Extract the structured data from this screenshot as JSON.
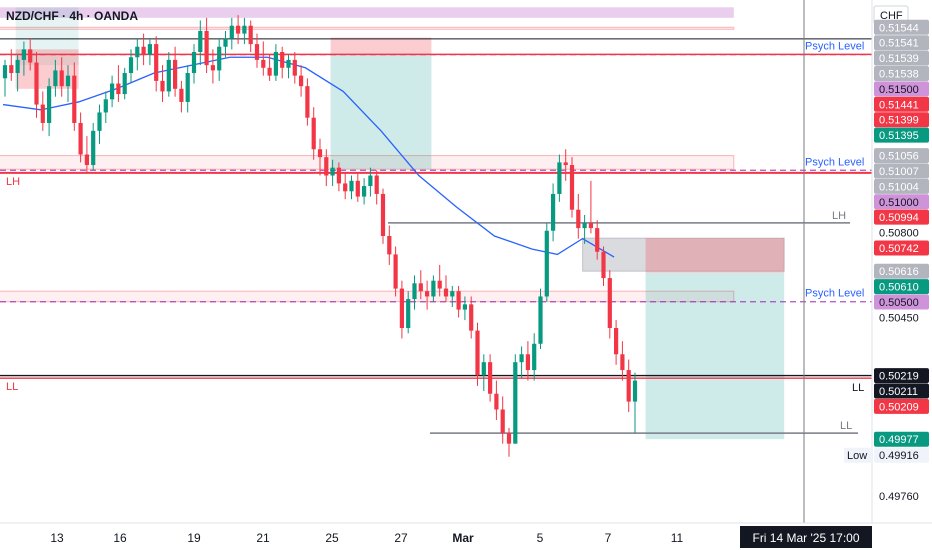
{
  "header": {
    "symbol_label": "NZD/CHF · 4h · OANDA",
    "currency": "CHF"
  },
  "annotations": {
    "lh_left": "LH",
    "ll_left": "LL",
    "lh_right": "LH",
    "ll_right": "LL",
    "ll_right_2": "LL",
    "psych_levels": [
      {
        "label": "Psych Level",
        "price": 0.5144
      },
      {
        "label": "Psych Level",
        "price": 0.51
      },
      {
        "label": "Psych Level",
        "price": 0.505
      }
    ],
    "cursor_label": "Fri 14 Mar '25   17:00"
  },
  "price_labels": [
    {
      "text": "0.51544",
      "bg": "#b2b5be",
      "fg": "#ffffff",
      "price": 0.51544
    },
    {
      "text": "0.51541",
      "bg": "#b2b5be",
      "fg": "#ffffff",
      "price": 0.51541
    },
    {
      "text": "0.51539",
      "bg": "#b2b5be",
      "fg": "#ffffff",
      "price": 0.51539
    },
    {
      "text": "0.51538",
      "bg": "#b2b5be",
      "fg": "#ffffff",
      "price": 0.51538
    },
    {
      "text": "0.51500",
      "bg": "#ce93d8",
      "fg": "#131722",
      "price": 0.515
    },
    {
      "text": "0.51441",
      "bg": "#f23645",
      "fg": "#ffffff",
      "price": 0.51441
    },
    {
      "text": "0.51399",
      "bg": "#f23645",
      "fg": "#ffffff",
      "price": 0.51399
    },
    {
      "text": "0.51395",
      "bg": "#089981",
      "fg": "#ffffff",
      "price": 0.51395
    },
    {
      "text": "0.51056",
      "bg": "#b2b5be",
      "fg": "#ffffff",
      "price": 0.51056
    },
    {
      "text": "0.51007",
      "bg": "#b2b5be",
      "fg": "#ffffff",
      "price": 0.51007
    },
    {
      "text": "0.51004",
      "bg": "#b2b5be",
      "fg": "#ffffff",
      "price": 0.51004
    },
    {
      "text": "0.51000",
      "bg": "#ce93d8",
      "fg": "#131722",
      "price": 0.51
    },
    {
      "text": "0.50994",
      "bg": "#f23645",
      "fg": "#ffffff",
      "price": 0.50994
    },
    {
      "text": "0.50800",
      "bg": "none",
      "fg": "#131722",
      "price": 0.508
    },
    {
      "text": "0.50742",
      "bg": "#f23645",
      "fg": "#ffffff",
      "price": 0.50742
    },
    {
      "text": "0.50616",
      "bg": "#b2b5be",
      "fg": "#ffffff",
      "price": 0.50616
    },
    {
      "text": "0.50610",
      "bg": "#089981",
      "fg": "#ffffff",
      "price": 0.5061
    },
    {
      "text": "0.50500",
      "bg": "#ce93d8",
      "fg": "#131722",
      "price": 0.505
    },
    {
      "text": "0.50450",
      "bg": "none",
      "fg": "#131722",
      "price": 0.5045
    },
    {
      "text": "0.50219",
      "bg": "#131722",
      "fg": "#ffffff",
      "price": 0.50219
    },
    {
      "text": "0.50211",
      "bg": "#131722",
      "fg": "#ffffff",
      "price": 0.50211
    },
    {
      "text": "0.50209",
      "bg": "#f23645",
      "fg": "#ffffff",
      "price": 0.50209
    },
    {
      "text": "0.49977",
      "bg": "#089981",
      "fg": "#ffffff",
      "price": 0.49977
    },
    {
      "text": "0.49916",
      "bg": "#f0f3fa",
      "fg": "#131722",
      "price": 0.49916,
      "prefix": "Low"
    },
    {
      "text": "0.49760",
      "bg": "none",
      "fg": "#131722",
      "price": 0.4976
    }
  ],
  "x_axis_ticks": [
    {
      "label": "13",
      "bold": false
    },
    {
      "label": "16",
      "bold": false
    },
    {
      "label": "19",
      "bold": false
    },
    {
      "label": "21",
      "bold": false
    },
    {
      "label": "25",
      "bold": false
    },
    {
      "label": "27",
      "bold": false
    },
    {
      "label": "Mar",
      "bold": true
    },
    {
      "label": "5",
      "bold": false
    },
    {
      "label": "7",
      "bold": false
    },
    {
      "label": "11",
      "bold": false
    }
  ],
  "colors": {
    "up": "#089981",
    "down": "#f23645",
    "ma": "#2962ff",
    "psych": "#9c27b0",
    "pink_zone": "#f23645",
    "purple_zone": "#ce93d8",
    "teal_zone": "#26a69a"
  },
  "chart_data": {
    "type": "candlestick",
    "symbol": "NZD/CHF",
    "timeframe": "4h",
    "source": "OANDA",
    "levels": {
      "lh_upper": 0.5144,
      "lh_red": 0.5099,
      "lh_gray": 0.508,
      "ll_black": 0.5021,
      "ll_gray": 0.5,
      "low": 0.49916
    },
    "candles": [
      {
        "o": 0.5135,
        "h": 0.5142,
        "l": 0.5128,
        "c": 0.514
      },
      {
        "o": 0.514,
        "h": 0.5146,
        "l": 0.5134,
        "c": 0.5137
      },
      {
        "o": 0.5137,
        "h": 0.5144,
        "l": 0.513,
        "c": 0.5142
      },
      {
        "o": 0.5142,
        "h": 0.5149,
        "l": 0.5136,
        "c": 0.5146
      },
      {
        "o": 0.5146,
        "h": 0.515,
        "l": 0.5138,
        "c": 0.5141
      },
      {
        "o": 0.5141,
        "h": 0.5145,
        "l": 0.512,
        "c": 0.5125
      },
      {
        "o": 0.5125,
        "h": 0.513,
        "l": 0.5115,
        "c": 0.5118
      },
      {
        "o": 0.5118,
        "h": 0.5135,
        "l": 0.5113,
        "c": 0.5132
      },
      {
        "o": 0.5132,
        "h": 0.5142,
        "l": 0.5128,
        "c": 0.5138
      },
      {
        "o": 0.5138,
        "h": 0.5143,
        "l": 0.5128,
        "c": 0.5132
      },
      {
        "o": 0.5132,
        "h": 0.514,
        "l": 0.5126,
        "c": 0.5136
      },
      {
        "o": 0.5136,
        "h": 0.5141,
        "l": 0.5115,
        "c": 0.5118
      },
      {
        "o": 0.5118,
        "h": 0.5122,
        "l": 0.5103,
        "c": 0.5106
      },
      {
        "o": 0.5106,
        "h": 0.5113,
        "l": 0.5099,
        "c": 0.5102
      },
      {
        "o": 0.5102,
        "h": 0.5118,
        "l": 0.51,
        "c": 0.5115
      },
      {
        "o": 0.5115,
        "h": 0.5125,
        "l": 0.511,
        "c": 0.5122
      },
      {
        "o": 0.5122,
        "h": 0.513,
        "l": 0.5118,
        "c": 0.5127
      },
      {
        "o": 0.5127,
        "h": 0.5136,
        "l": 0.5124,
        "c": 0.5133
      },
      {
        "o": 0.5133,
        "h": 0.514,
        "l": 0.5126,
        "c": 0.5129
      },
      {
        "o": 0.5129,
        "h": 0.5139,
        "l": 0.5127,
        "c": 0.5137
      },
      {
        "o": 0.5137,
        "h": 0.5146,
        "l": 0.5133,
        "c": 0.5143
      },
      {
        "o": 0.5143,
        "h": 0.515,
        "l": 0.5138,
        "c": 0.5147
      },
      {
        "o": 0.5147,
        "h": 0.5152,
        "l": 0.514,
        "c": 0.5144
      },
      {
        "o": 0.5144,
        "h": 0.515,
        "l": 0.514,
        "c": 0.5148
      },
      {
        "o": 0.5148,
        "h": 0.5151,
        "l": 0.513,
        "c": 0.5134
      },
      {
        "o": 0.5134,
        "h": 0.514,
        "l": 0.5126,
        "c": 0.513
      },
      {
        "o": 0.513,
        "h": 0.5145,
        "l": 0.5128,
        "c": 0.5142
      },
      {
        "o": 0.5142,
        "h": 0.5147,
        "l": 0.5128,
        "c": 0.5131
      },
      {
        "o": 0.5131,
        "h": 0.5134,
        "l": 0.5122,
        "c": 0.5126
      },
      {
        "o": 0.5126,
        "h": 0.514,
        "l": 0.5122,
        "c": 0.5137
      },
      {
        "o": 0.5137,
        "h": 0.5148,
        "l": 0.5133,
        "c": 0.5145
      },
      {
        "o": 0.5145,
        "h": 0.5157,
        "l": 0.514,
        "c": 0.5153
      },
      {
        "o": 0.5153,
        "h": 0.5158,
        "l": 0.5137,
        "c": 0.514
      },
      {
        "o": 0.514,
        "h": 0.5146,
        "l": 0.5133,
        "c": 0.5138
      },
      {
        "o": 0.5138,
        "h": 0.515,
        "l": 0.5134,
        "c": 0.5147
      },
      {
        "o": 0.5147,
        "h": 0.5153,
        "l": 0.5143,
        "c": 0.515
      },
      {
        "o": 0.515,
        "h": 0.5158,
        "l": 0.5146,
        "c": 0.5155
      },
      {
        "o": 0.5155,
        "h": 0.5159,
        "l": 0.5148,
        "c": 0.5152
      },
      {
        "o": 0.5152,
        "h": 0.5158,
        "l": 0.5148,
        "c": 0.5155
      },
      {
        "o": 0.5155,
        "h": 0.5157,
        "l": 0.5145,
        "c": 0.5148
      },
      {
        "o": 0.5148,
        "h": 0.5152,
        "l": 0.5139,
        "c": 0.5142
      },
      {
        "o": 0.5142,
        "h": 0.5149,
        "l": 0.5136,
        "c": 0.5139
      },
      {
        "o": 0.5139,
        "h": 0.5144,
        "l": 0.5134,
        "c": 0.5136
      },
      {
        "o": 0.5136,
        "h": 0.5148,
        "l": 0.5134,
        "c": 0.5145
      },
      {
        "o": 0.5145,
        "h": 0.5147,
        "l": 0.5135,
        "c": 0.5139
      },
      {
        "o": 0.5139,
        "h": 0.5144,
        "l": 0.5135,
        "c": 0.5142
      },
      {
        "o": 0.5142,
        "h": 0.5145,
        "l": 0.5133,
        "c": 0.5136
      },
      {
        "o": 0.5136,
        "h": 0.514,
        "l": 0.5128,
        "c": 0.5132
      },
      {
        "o": 0.5132,
        "h": 0.5135,
        "l": 0.5117,
        "c": 0.512
      },
      {
        "o": 0.512,
        "h": 0.5124,
        "l": 0.5104,
        "c": 0.5108
      },
      {
        "o": 0.5108,
        "h": 0.5112,
        "l": 0.5098,
        "c": 0.5105
      },
      {
        "o": 0.5105,
        "h": 0.5108,
        "l": 0.5094,
        "c": 0.5098
      },
      {
        "o": 0.5098,
        "h": 0.5104,
        "l": 0.5094,
        "c": 0.5101
      },
      {
        "o": 0.5101,
        "h": 0.5103,
        "l": 0.5092,
        "c": 0.5095
      },
      {
        "o": 0.5095,
        "h": 0.5099,
        "l": 0.5089,
        "c": 0.5092
      },
      {
        "o": 0.5092,
        "h": 0.5098,
        "l": 0.5089,
        "c": 0.5096
      },
      {
        "o": 0.5096,
        "h": 0.5099,
        "l": 0.5088,
        "c": 0.509
      },
      {
        "o": 0.509,
        "h": 0.5097,
        "l": 0.5087,
        "c": 0.5094
      },
      {
        "o": 0.5094,
        "h": 0.5101,
        "l": 0.509,
        "c": 0.5098
      },
      {
        "o": 0.5098,
        "h": 0.51,
        "l": 0.5087,
        "c": 0.5091
      },
      {
        "o": 0.5091,
        "h": 0.5093,
        "l": 0.5072,
        "c": 0.5075
      },
      {
        "o": 0.5075,
        "h": 0.5079,
        "l": 0.5064,
        "c": 0.5068
      },
      {
        "o": 0.5068,
        "h": 0.5071,
        "l": 0.5052,
        "c": 0.5055
      },
      {
        "o": 0.5055,
        "h": 0.5058,
        "l": 0.5036,
        "c": 0.504
      },
      {
        "o": 0.504,
        "h": 0.5054,
        "l": 0.5038,
        "c": 0.5051
      },
      {
        "o": 0.5051,
        "h": 0.506,
        "l": 0.5047,
        "c": 0.5057
      },
      {
        "o": 0.5057,
        "h": 0.5062,
        "l": 0.5051,
        "c": 0.5054
      },
      {
        "o": 0.5054,
        "h": 0.5058,
        "l": 0.5047,
        "c": 0.5052
      },
      {
        "o": 0.5052,
        "h": 0.506,
        "l": 0.505,
        "c": 0.5058
      },
      {
        "o": 0.5058,
        "h": 0.5064,
        "l": 0.5052,
        "c": 0.5055
      },
      {
        "o": 0.5055,
        "h": 0.506,
        "l": 0.505,
        "c": 0.5052
      },
      {
        "o": 0.5052,
        "h": 0.5056,
        "l": 0.5048,
        "c": 0.5054
      },
      {
        "o": 0.5054,
        "h": 0.5056,
        "l": 0.5044,
        "c": 0.5047
      },
      {
        "o": 0.5047,
        "h": 0.5052,
        "l": 0.5043,
        "c": 0.5049
      },
      {
        "o": 0.5049,
        "h": 0.5052,
        "l": 0.5036,
        "c": 0.5039
      },
      {
        "o": 0.5039,
        "h": 0.5042,
        "l": 0.5018,
        "c": 0.5022
      },
      {
        "o": 0.5022,
        "h": 0.503,
        "l": 0.5016,
        "c": 0.5027
      },
      {
        "o": 0.5027,
        "h": 0.503,
        "l": 0.5012,
        "c": 0.5015
      },
      {
        "o": 0.5015,
        "h": 0.502,
        "l": 0.5005,
        "c": 0.5009
      },
      {
        "o": 0.5009,
        "h": 0.5014,
        "l": 0.4996,
        "c": 0.5
      },
      {
        "o": 0.5,
        "h": 0.5002,
        "l": 0.4991,
        "c": 0.4996
      },
      {
        "o": 0.4996,
        "h": 0.503,
        "l": 0.4996,
        "c": 0.5027
      },
      {
        "o": 0.5027,
        "h": 0.5033,
        "l": 0.5021,
        "c": 0.503
      },
      {
        "o": 0.503,
        "h": 0.5035,
        "l": 0.502,
        "c": 0.5024
      },
      {
        "o": 0.5024,
        "h": 0.5038,
        "l": 0.502,
        "c": 0.5034
      },
      {
        "o": 0.5034,
        "h": 0.5055,
        "l": 0.5032,
        "c": 0.5052
      },
      {
        "o": 0.5052,
        "h": 0.508,
        "l": 0.505,
        "c": 0.5077
      },
      {
        "o": 0.5077,
        "h": 0.5095,
        "l": 0.5073,
        "c": 0.5091
      },
      {
        "o": 0.5091,
        "h": 0.5106,
        "l": 0.5088,
        "c": 0.5103
      },
      {
        "o": 0.5103,
        "h": 0.5108,
        "l": 0.5096,
        "c": 0.5102
      },
      {
        "o": 0.5102,
        "h": 0.5105,
        "l": 0.5082,
        "c": 0.5085
      },
      {
        "o": 0.5085,
        "h": 0.5091,
        "l": 0.5074,
        "c": 0.5078
      },
      {
        "o": 0.5078,
        "h": 0.5083,
        "l": 0.5072,
        "c": 0.508
      },
      {
        "o": 0.508,
        "h": 0.5096,
        "l": 0.5076,
        "c": 0.5078
      },
      {
        "o": 0.5078,
        "h": 0.5081,
        "l": 0.5066,
        "c": 0.5069
      },
      {
        "o": 0.5069,
        "h": 0.5071,
        "l": 0.5056,
        "c": 0.5059
      },
      {
        "o": 0.5059,
        "h": 0.5062,
        "l": 0.5036,
        "c": 0.504
      },
      {
        "o": 0.504,
        "h": 0.5043,
        "l": 0.5026,
        "c": 0.503
      },
      {
        "o": 0.503,
        "h": 0.5035,
        "l": 0.502,
        "c": 0.5024
      },
      {
        "o": 0.5024,
        "h": 0.5028,
        "l": 0.5008,
        "c": 0.5012
      },
      {
        "o": 0.5012,
        "h": 0.5023,
        "l": 0.5,
        "c": 0.502
      }
    ],
    "ma": [
      [
        0,
        0.5125
      ],
      [
        6,
        0.5123
      ],
      [
        12,
        0.5126
      ],
      [
        18,
        0.5131
      ],
      [
        24,
        0.5137
      ],
      [
        30,
        0.514
      ],
      [
        36,
        0.5143
      ],
      [
        42,
        0.5143
      ],
      [
        48,
        0.5139
      ],
      [
        54,
        0.513
      ],
      [
        60,
        0.5115
      ],
      [
        66,
        0.5098
      ],
      [
        72,
        0.5086
      ],
      [
        78,
        0.5075
      ],
      [
        84,
        0.507
      ],
      [
        88,
        0.5068
      ],
      [
        92,
        0.5074
      ],
      [
        97,
        0.5067
      ]
    ],
    "zones": [
      {
        "x0": -2,
        "x1": 116,
        "y0": 0.5158,
        "y1": 0.5162,
        "kind": "purple"
      },
      {
        "x0": -2,
        "x1": 116,
        "y0": 0.51538,
        "y1": 0.51544,
        "kind": "pink"
      },
      {
        "x0": -2,
        "x1": 116,
        "y0": 0.51004,
        "y1": 0.51056,
        "kind": "pink"
      },
      {
        "x0": -2,
        "x1": 116,
        "y0": 0.505,
        "y1": 0.5054,
        "kind": "pink"
      },
      {
        "x0": 2,
        "x1": 12,
        "y0": 0.514,
        "y1": 0.5162,
        "kind": "tealLight"
      },
      {
        "x0": 2,
        "x1": 12,
        "y0": 0.5131,
        "y1": 0.5146,
        "kind": "pinkStrong"
      },
      {
        "x0": 52,
        "x1": 68,
        "y0": 0.51441,
        "y1": 0.51505,
        "kind": "pinkStrong"
      },
      {
        "x0": 52,
        "x1": 68,
        "y0": 0.51004,
        "y1": 0.51441,
        "kind": "teal"
      },
      {
        "x0": 92,
        "x1": 124,
        "y0": 0.50742,
        "y1": 0.50616,
        "kind": "gray"
      },
      {
        "x0": 102,
        "x1": 124,
        "y0": 0.50742,
        "y1": 0.5061,
        "kind": "pinkStrong"
      },
      {
        "x0": 102,
        "x1": 124,
        "y0": 0.5061,
        "y1": 0.49977,
        "kind": "teal"
      }
    ]
  }
}
